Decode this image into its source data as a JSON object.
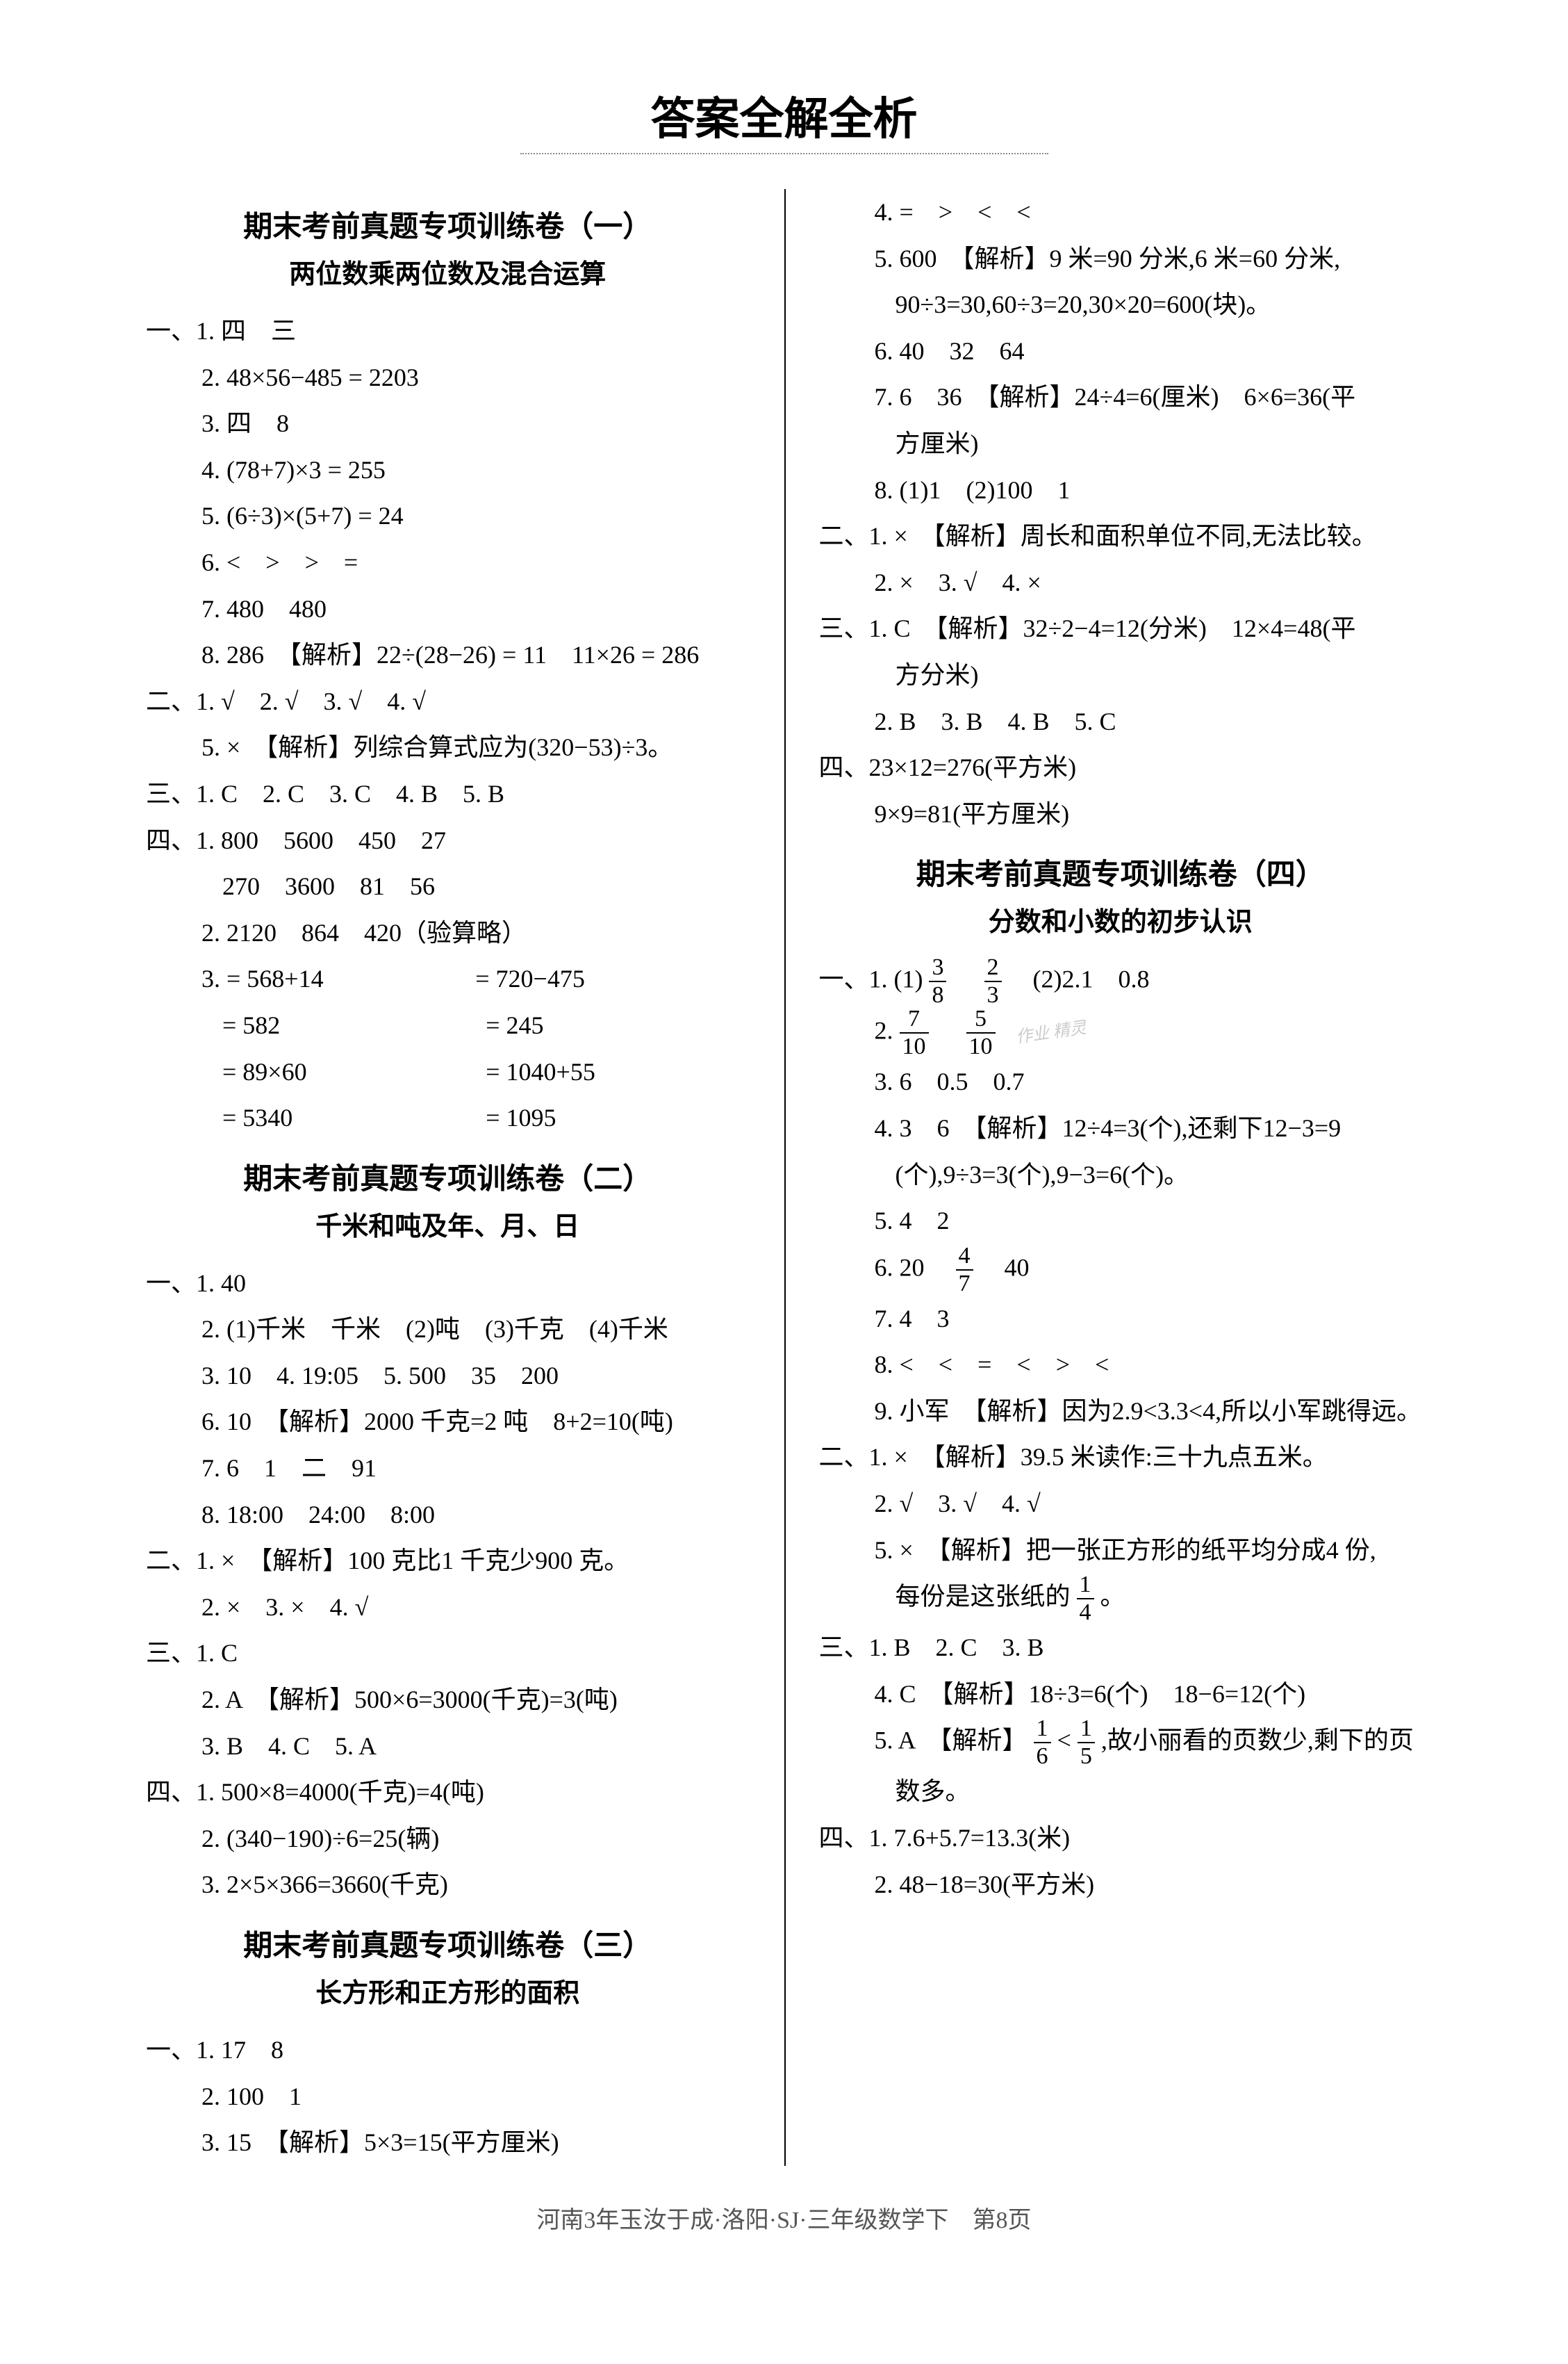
{
  "pageTitle": "答案全解全析",
  "footer": "河南3年玉汝于成·洛阳·SJ·三年级数学下　第8页",
  "colors": {
    "background": "#ffffff",
    "text": "#000000",
    "divider": "#000000",
    "underline": "#888888",
    "watermark": "#cccccc",
    "footerText": "#555555"
  },
  "typography": {
    "titleSize": 64,
    "sectionTitleSize": 42,
    "subtitleSize": 38,
    "bodySize": 36,
    "lineHeight": 1.85
  },
  "sections": [
    {
      "title": "期末考前真题专项训练卷（一）",
      "subtitle": "两位数乘两位数及混合运算"
    },
    {
      "title": "期末考前真题专项训练卷（二）",
      "subtitle": "千米和吨及年、月、日"
    },
    {
      "title": "期末考前真题专项训练卷（三）",
      "subtitle": "长方形和正方形的面积"
    },
    {
      "title": "期末考前真题专项训练卷（四）",
      "subtitle": "分数和小数的初步认识"
    }
  ],
  "left": {
    "s1": {
      "l1": "一、1. 四　三",
      "l2": "2. 48×56−485 = 2203",
      "l3": "3. 四　8",
      "l4": "4. (78+7)×3 = 255",
      "l5": "5. (6÷3)×(5+7) = 24",
      "l6": "6. <　>　>　=",
      "l7": "7. 480　480",
      "l8": "8. 286　【解析】22÷(28−26) = 11　11×26 = 286",
      "l9": "二、1. √　2. √　3. √　4. √",
      "l10": "5. ×　【解析】列综合算式应为(320−53)÷3。",
      "l11": "三、1. C　2. C　3. C　4. B　5. B",
      "l12": "四、1. 800　5600　450　27",
      "l13": "270　3600　81　56",
      "l14": "2. 2120　864　420（验算略）",
      "l15a": "3. = 568+14",
      "l15b": "= 720−475",
      "l16a": "= 582",
      "l16b": "= 245",
      "l17a": "= 89×60",
      "l17b": "= 1040+55",
      "l18a": "= 5340",
      "l18b": "= 1095"
    },
    "s2": {
      "l1": "一、1. 40",
      "l2": "2. (1)千米　千米　(2)吨　(3)千克　(4)千米",
      "l3": "3. 10　4. 19:05　5. 500　35　200",
      "l4": "6. 10　【解析】2000 千克=2 吨　8+2=10(吨)",
      "l5": "7. 6　1　二　91",
      "l6": "8. 18:00　24:00　8:00",
      "l7": "二、1. ×　【解析】100 克比1 千克少900 克。",
      "l8": "2. ×　3. ×　4. √",
      "l9": "三、1. C",
      "l10": "2. A　【解析】500×6=3000(千克)=3(吨)",
      "l11": "3. B　4. C　5. A",
      "l12": "四、1. 500×8=4000(千克)=4(吨)",
      "l13": "2. (340−190)÷6=25(辆)",
      "l14": "3. 2×5×366=3660(千克)"
    },
    "s3": {
      "l1": "一、1. 17　8",
      "l2": "2. 100　1",
      "l3": "3. 15　【解析】5×3=15(平方厘米)"
    }
  },
  "right": {
    "s3cont": {
      "l1": "4. =　>　<　<",
      "l2": "5. 600　【解析】9 米=90 分米,6 米=60 分米,",
      "l3": "90÷3=30,60÷3=20,30×20=600(块)。",
      "l4": "6. 40　32　64",
      "l5": "7. 6　36　【解析】24÷4=6(厘米)　6×6=36(平",
      "l6": "方厘米)",
      "l7": "8. (1)1　(2)100　1",
      "l8": "二、1. ×　【解析】周长和面积单位不同,无法比较。",
      "l9": "2. ×　3. √　4. ×",
      "l10": "三、1. C　【解析】32÷2−4=12(分米)　12×4=48(平",
      "l11": "方分米)",
      "l12": "2. B　3. B　4. B　5. C",
      "l13": "四、23×12=276(平方米)",
      "l14": "9×9=81(平方厘米)"
    },
    "s4": {
      "l1pre": "一、1. (1)",
      "f1n": "3",
      "f1d": "8",
      "l1mid": "　",
      "f2n": "2",
      "f2d": "3",
      "l1post": "　(2)2.1　0.8",
      "l2pre": "2.",
      "f3n": "7",
      "f3d": "10",
      "l2mid": "　",
      "f4n": "5",
      "f4d": "10",
      "wm": "作业  精灵",
      "l3": "3. 6　0.5　0.7",
      "l4": "4. 3　6　【解析】12÷4=3(个),还剩下12−3=9",
      "l5": "(个),9÷3=3(个),9−3=6(个)。",
      "l6": "5. 4　2",
      "l7pre": "6. 20　",
      "f5n": "4",
      "f5d": "7",
      "l7post": "　40",
      "l8": "7. 4　3",
      "l9": "8. <　<　=　<　>　<",
      "l10": "9. 小军　【解析】因为2.9<3.3<4,所以小军跳得远。",
      "l11": "二、1. ×　【解析】39.5 米读作:三十九点五米。",
      "l12": "2. √　3. √　4. √",
      "l13": "5. ×　【解析】把一张正方形的纸平均分成4 份,",
      "l14pre": "每份是这张纸的",
      "f6n": "1",
      "f6d": "4",
      "l14post": "。",
      "l15": "三、1. B　2. C　3. B",
      "l16": "4. C　【解析】18÷3=6(个)　18−6=12(个)",
      "l17pre": "5. A　【解析】",
      "f7n": "1",
      "f7d": "6",
      "l17mid": "<",
      "f8n": "1",
      "f8d": "5",
      "l17post": ",故小丽看的页数少,剩下的页",
      "l18": "数多。",
      "l19": "四、1. 7.6+5.7=13.3(米)",
      "l20": "2. 48−18=30(平方米)"
    }
  }
}
